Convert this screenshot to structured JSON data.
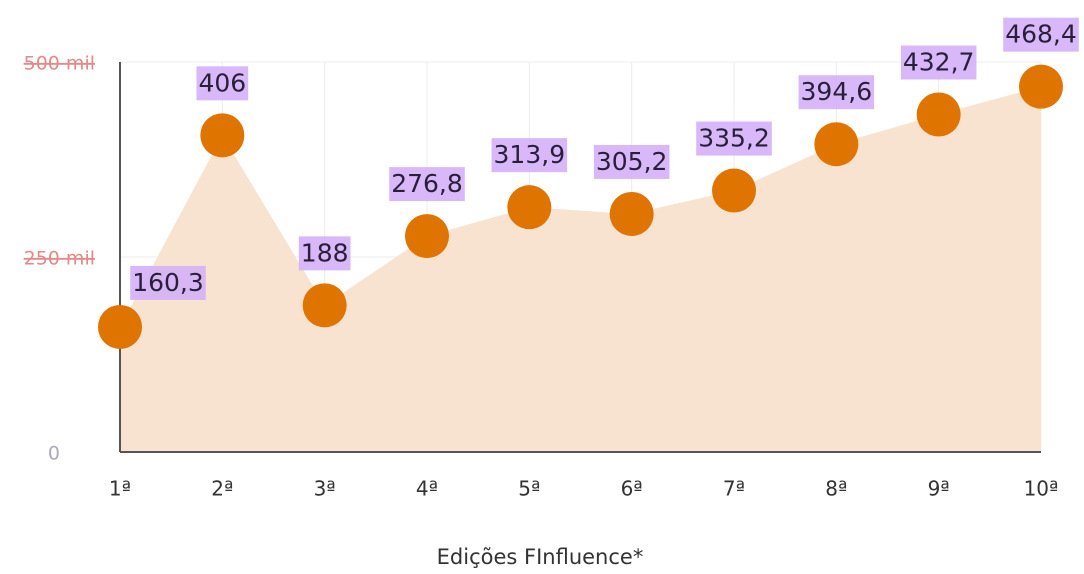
{
  "chart_data": {
    "type": "area",
    "x_label": "Edições FInfluence*",
    "categories": [
      "1ª",
      "2ª",
      "3ª",
      "4ª",
      "5ª",
      "6ª",
      "7ª",
      "8ª",
      "9ª",
      "10ª"
    ],
    "values": [
      160.3,
      406,
      188,
      276.8,
      313.9,
      305.2,
      335.2,
      394.6,
      432.7,
      468.4
    ],
    "value_labels": [
      "160,3",
      "406",
      "188",
      "276,8",
      "313,9",
      "305,2",
      "335,2",
      "394,6",
      "432,7",
      "468,4"
    ],
    "color": "#e07400",
    "area_color": "#f8e3d1",
    "label_color": "#d4b0f7",
    "ylim": [
      0,
      500
    ],
    "yticks": [
      0,
      {
        "value": 250,
        "label": "250 mil"
      },
      {
        "value": 500,
        "label": "500 mil"
      }
    ],
    "grid": true
  }
}
